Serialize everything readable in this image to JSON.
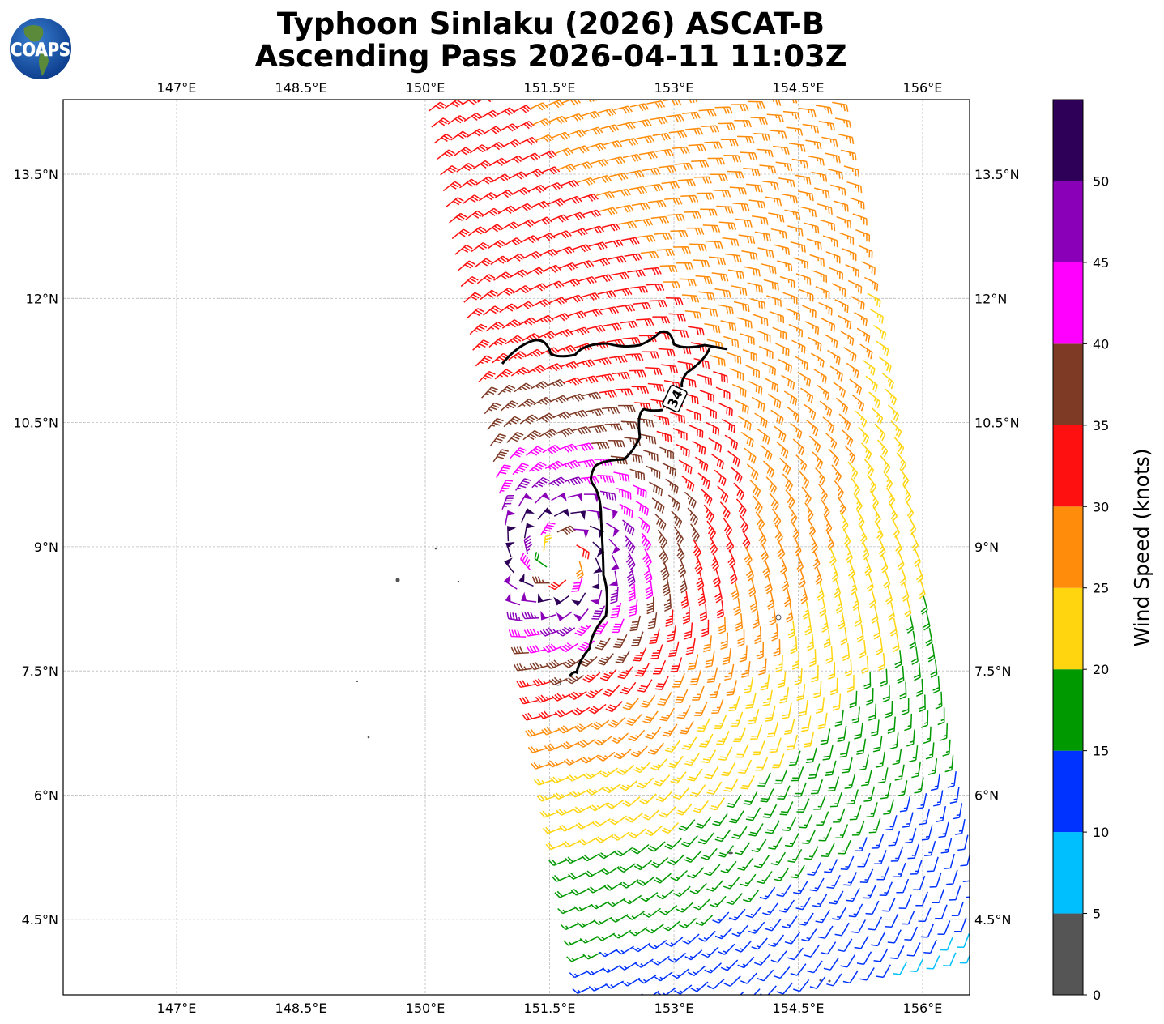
{
  "header": {
    "title_line1": "Typhoon Sinlaku (2026) ASCAT-B",
    "title_line2": "Ascending Pass 2026-04-11 11:03Z",
    "logo_text": "COAPS"
  },
  "map": {
    "lon_ticks": [
      "147°E",
      "148.5°E",
      "150°E",
      "151.5°E",
      "153°E",
      "154.5°E",
      "156°E"
    ],
    "lat_ticks": [
      "13.5°N",
      "12°N",
      "10.5°N",
      "9°N",
      "7.5°N",
      "6°N",
      "4.5°N"
    ],
    "contour_label": "34",
    "contour_value_kt": 34
  },
  "colorbar": {
    "label": "Wind Speed (knots)",
    "ticks": [
      "0",
      "5",
      "10",
      "15",
      "20",
      "25",
      "30",
      "35",
      "40",
      "45",
      "50"
    ],
    "levels": [
      0,
      5,
      10,
      15,
      20,
      25,
      30,
      35,
      40,
      45,
      50,
      55
    ],
    "colors": [
      "#555555",
      "#00bfff",
      "#0033ff",
      "#009900",
      "#ffd50f",
      "#ff8c0a",
      "#ff1010",
      "#7f3a26",
      "#ff00ff",
      "#8a00b8",
      "#2e0058"
    ]
  }
}
